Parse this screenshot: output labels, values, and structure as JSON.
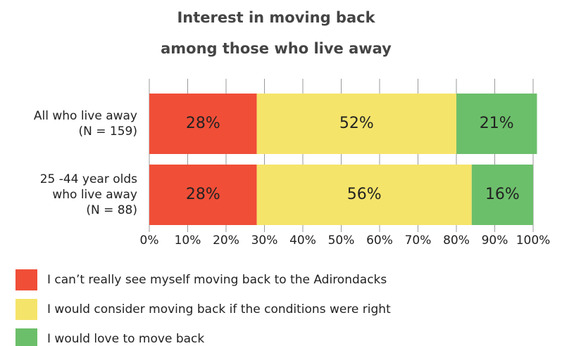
{
  "chart_data": {
    "type": "stacked-bar-horizontal",
    "title": [
      "Interest in moving back",
      "among those who live away"
    ],
    "categories": [
      [
        "All who live away",
        "(N = 159)"
      ],
      [
        "25 -44 year olds",
        "who live away",
        "(N = 88)"
      ]
    ],
    "series": [
      {
        "name": "I can’t really see myself moving back to the Adirondacks",
        "color": "#f04e37",
        "values": [
          28,
          28
        ],
        "value_labels": [
          "28%",
          "28%"
        ]
      },
      {
        "name": "I would consider moving back if the conditions were right",
        "color": "#f5e46a",
        "values": [
          52,
          56
        ],
        "value_labels": [
          "52%",
          "56%"
        ]
      },
      {
        "name": "I would love to move back",
        "color": "#6cbf6a",
        "values": [
          21,
          16
        ],
        "value_labels": [
          "21%",
          "16%"
        ]
      }
    ],
    "xlim": [
      0,
      100
    ],
    "xticks": [
      {
        "value": 0,
        "label": "0%"
      },
      {
        "value": 10,
        "label": "10%"
      },
      {
        "value": 20,
        "label": "20%"
      },
      {
        "value": 30,
        "label": "30%"
      },
      {
        "value": 40,
        "label": "40%"
      },
      {
        "value": 50,
        "label": "50%"
      },
      {
        "value": 60,
        "label": "60%"
      },
      {
        "value": 70,
        "label": "70%"
      },
      {
        "value": 80,
        "label": "80%"
      },
      {
        "value": 90,
        "label": "90%"
      },
      {
        "value": 100,
        "label": "100%"
      }
    ],
    "grid": true,
    "legend": "bottom"
  }
}
